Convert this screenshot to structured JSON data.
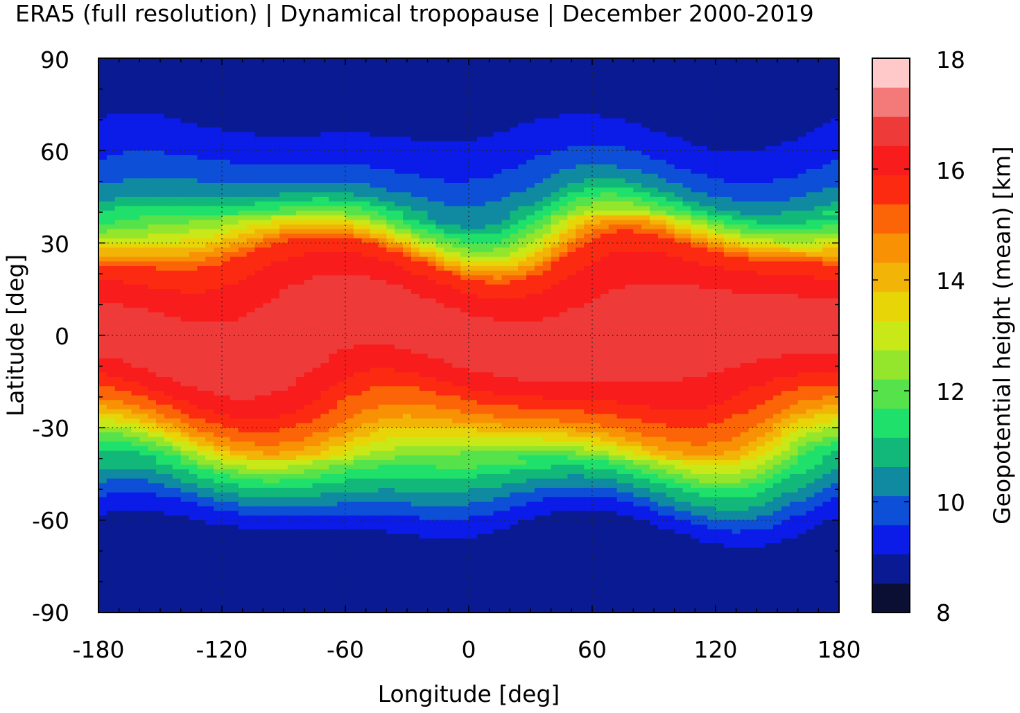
{
  "title": "ERA5 (full resolution) | Dynamical tropopause | December 2000-2019",
  "chart_data": {
    "type": "heatmap",
    "title": "ERA5 (full resolution) | Dynamical tropopause | December 2000-2019",
    "xlabel": "Longitude [deg]",
    "ylabel": "Latitude [deg]",
    "colorbar_label": "Geopotential height (mean) [km]",
    "xlim": [
      -180,
      180
    ],
    "ylim": [
      -90,
      90
    ],
    "x_ticks": [
      "-180",
      "-120",
      "-60",
      "0",
      "60",
      "120",
      "180"
    ],
    "y_ticks": [
      "90",
      "60",
      "30",
      "0",
      "-30",
      "-60",
      "-90"
    ],
    "colorbar_ticks": [
      "18",
      "16",
      "14",
      "12",
      "10",
      "8"
    ],
    "colorbar_range": [
      8,
      18
    ],
    "grid": "dotted at 30 deg latitude and 60 deg longitude",
    "colormap": [
      "#0b0f33",
      "#0a1a92",
      "#0b1be8",
      "#0d4fd6",
      "#0f8aa0",
      "#12b879",
      "#1ee06a",
      "#56e24a",
      "#94e62c",
      "#c8e818",
      "#e8d508",
      "#f3b408",
      "#f89204",
      "#fb6508",
      "#fc2a10",
      "#f81c1c",
      "#ef3a3a",
      "#f47a7a",
      "#ffc9c9"
    ],
    "zonal_band_heights_km": [
      {
        "lat": 80,
        "value": 8.7
      },
      {
        "lat": 60,
        "value": 9.3
      },
      {
        "lat": 45,
        "value": 10.5
      },
      {
        "lat": 35,
        "value": 12.8
      },
      {
        "lat": 25,
        "value": 16.0
      },
      {
        "lat": 10,
        "value": 17.0
      },
      {
        "lat": 0,
        "value": 17.2
      },
      {
        "lat": -15,
        "value": 16.8
      },
      {
        "lat": -30,
        "value": 15.0
      },
      {
        "lat": -45,
        "value": 11.5
      },
      {
        "lat": -60,
        "value": 9.2
      },
      {
        "lat": -75,
        "value": 8.6
      }
    ]
  }
}
